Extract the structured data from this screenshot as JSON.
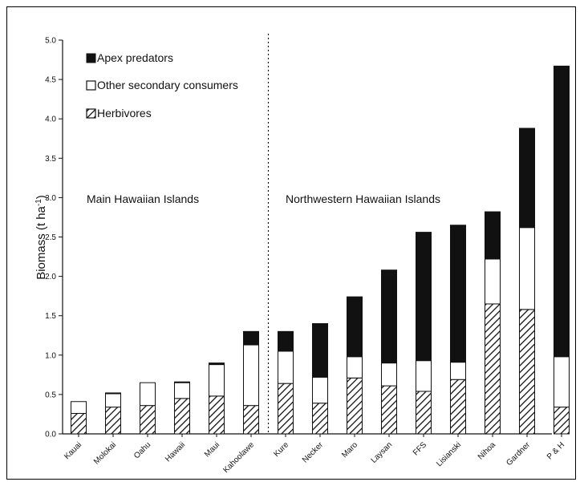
{
  "chart_data": {
    "type": "bar",
    "stacked": true,
    "categories": [
      "Kauai",
      "Molokai",
      "Oahu",
      "Hawaii",
      "Maui",
      "Kahoolawe",
      "Kure",
      "Necker",
      "Maro",
      "Laysan",
      "FFS",
      "Lisianski",
      "Nihoa",
      "Gardner",
      "P & H"
    ],
    "series": [
      {
        "name": "Herbivores",
        "pattern": "hatch",
        "values": [
          0.26,
          0.34,
          0.36,
          0.45,
          0.48,
          0.36,
          0.64,
          0.39,
          0.71,
          0.61,
          0.54,
          0.69,
          1.65,
          1.58,
          0.34
        ]
      },
      {
        "name": "Other secondary consumers",
        "color": "#ffffff",
        "values": [
          0.15,
          0.17,
          0.29,
          0.2,
          0.4,
          0.77,
          0.41,
          0.33,
          0.27,
          0.29,
          0.39,
          0.22,
          0.57,
          1.04,
          0.64
        ]
      },
      {
        "name": "Apex predators",
        "color": "#111111",
        "values": [
          0.0,
          0.01,
          0.0,
          0.01,
          0.02,
          0.17,
          0.25,
          0.68,
          0.76,
          1.18,
          1.63,
          1.74,
          0.6,
          1.26,
          3.69
        ]
      }
    ],
    "ylabel": "Biomass (t ha",
    "ylabel_sup": "-1",
    "ylabel_close": ")",
    "ylim": [
      0,
      5.0
    ],
    "yticks": [
      "0.0",
      "0.5",
      "1.0",
      "1.5",
      "2.0",
      "2.5",
      "3.0",
      "3.5",
      "4.0",
      "4.5",
      "5.0"
    ],
    "legend_entries": [
      "Apex predators",
      "Other secondary consumers",
      "Herbivores"
    ],
    "legend_placement": "top-left",
    "region_labels": [
      "Main Hawaiian Islands",
      "Northwestern Hawaiian Islands"
    ],
    "divider_after_index": 5,
    "grid": false
  }
}
